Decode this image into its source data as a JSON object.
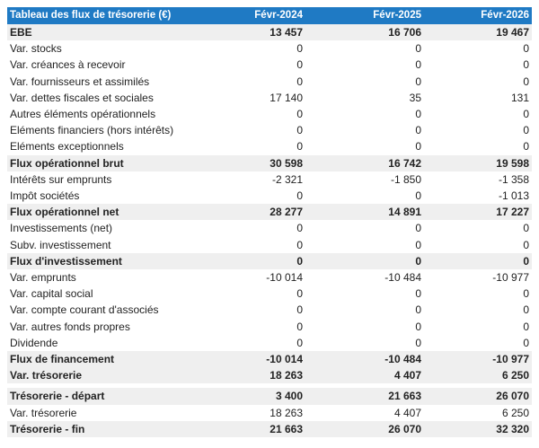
{
  "table": {
    "header": [
      "Tableau des flux de trésorerie (€)",
      "Févr-2024",
      "Févr-2025",
      "Févr-2026"
    ],
    "rows": [
      {
        "label": "EBE",
        "v": [
          "13 457",
          "16 706",
          "19 467"
        ],
        "bold": true
      },
      {
        "label": "Var. stocks",
        "v": [
          "0",
          "0",
          "0"
        ]
      },
      {
        "label": "Var. créances à recevoir",
        "v": [
          "0",
          "0",
          "0"
        ]
      },
      {
        "label": "Var. fournisseurs et assimilés",
        "v": [
          "0",
          "0",
          "0"
        ]
      },
      {
        "label": "Var. dettes fiscales et sociales",
        "v": [
          "17 140",
          "35",
          "131"
        ]
      },
      {
        "label": "Autres éléments opérationnels",
        "v": [
          "0",
          "0",
          "0"
        ]
      },
      {
        "label": "Eléments financiers (hors intérêts)",
        "v": [
          "0",
          "0",
          "0"
        ]
      },
      {
        "label": "Eléments exceptionnels",
        "v": [
          "0",
          "0",
          "0"
        ]
      },
      {
        "label": "Flux opérationnel brut",
        "v": [
          "30 598",
          "16 742",
          "19 598"
        ],
        "bold": true
      },
      {
        "label": "Intérêts sur emprunts",
        "v": [
          "-2 321",
          "-1 850",
          "-1 358"
        ]
      },
      {
        "label": "Impôt sociétés",
        "v": [
          "0",
          "0",
          "-1 013"
        ]
      },
      {
        "label": "Flux opérationnel net",
        "v": [
          "28 277",
          "14 891",
          "17 227"
        ],
        "bold": true
      },
      {
        "label": "Investissements (net)",
        "v": [
          "0",
          "0",
          "0"
        ]
      },
      {
        "label": "Subv. investissement",
        "v": [
          "0",
          "0",
          "0"
        ]
      },
      {
        "label": "Flux d'investissement",
        "v": [
          "0",
          "0",
          "0"
        ],
        "bold": true
      },
      {
        "label": "Var. emprunts",
        "v": [
          "-10 014",
          "-10 484",
          "-10 977"
        ]
      },
      {
        "label": "Var. capital social",
        "v": [
          "0",
          "0",
          "0"
        ]
      },
      {
        "label": "Var. compte courant d'associés",
        "v": [
          "0",
          "0",
          "0"
        ]
      },
      {
        "label": "Var. autres fonds propres",
        "v": [
          "0",
          "0",
          "0"
        ]
      },
      {
        "label": "Dividende",
        "v": [
          "0",
          "0",
          "0"
        ]
      },
      {
        "label": "Flux de financement",
        "v": [
          "-10 014",
          "-10 484",
          "-10 977"
        ],
        "bold": true
      },
      {
        "label": "Var. trésorerie",
        "v": [
          "18 263",
          "4 407",
          "6 250"
        ],
        "bold": true,
        "gapAfter": true
      },
      {
        "label": "Trésorerie - départ",
        "v": [
          "3 400",
          "21 663",
          "26 070"
        ],
        "bold": true
      },
      {
        "label": "Var. trésorerie",
        "v": [
          "18 263",
          "4 407",
          "6 250"
        ]
      },
      {
        "label": "Trésorerie - fin",
        "v": [
          "21 663",
          "26 070",
          "32 320"
        ],
        "bold": true
      }
    ]
  }
}
